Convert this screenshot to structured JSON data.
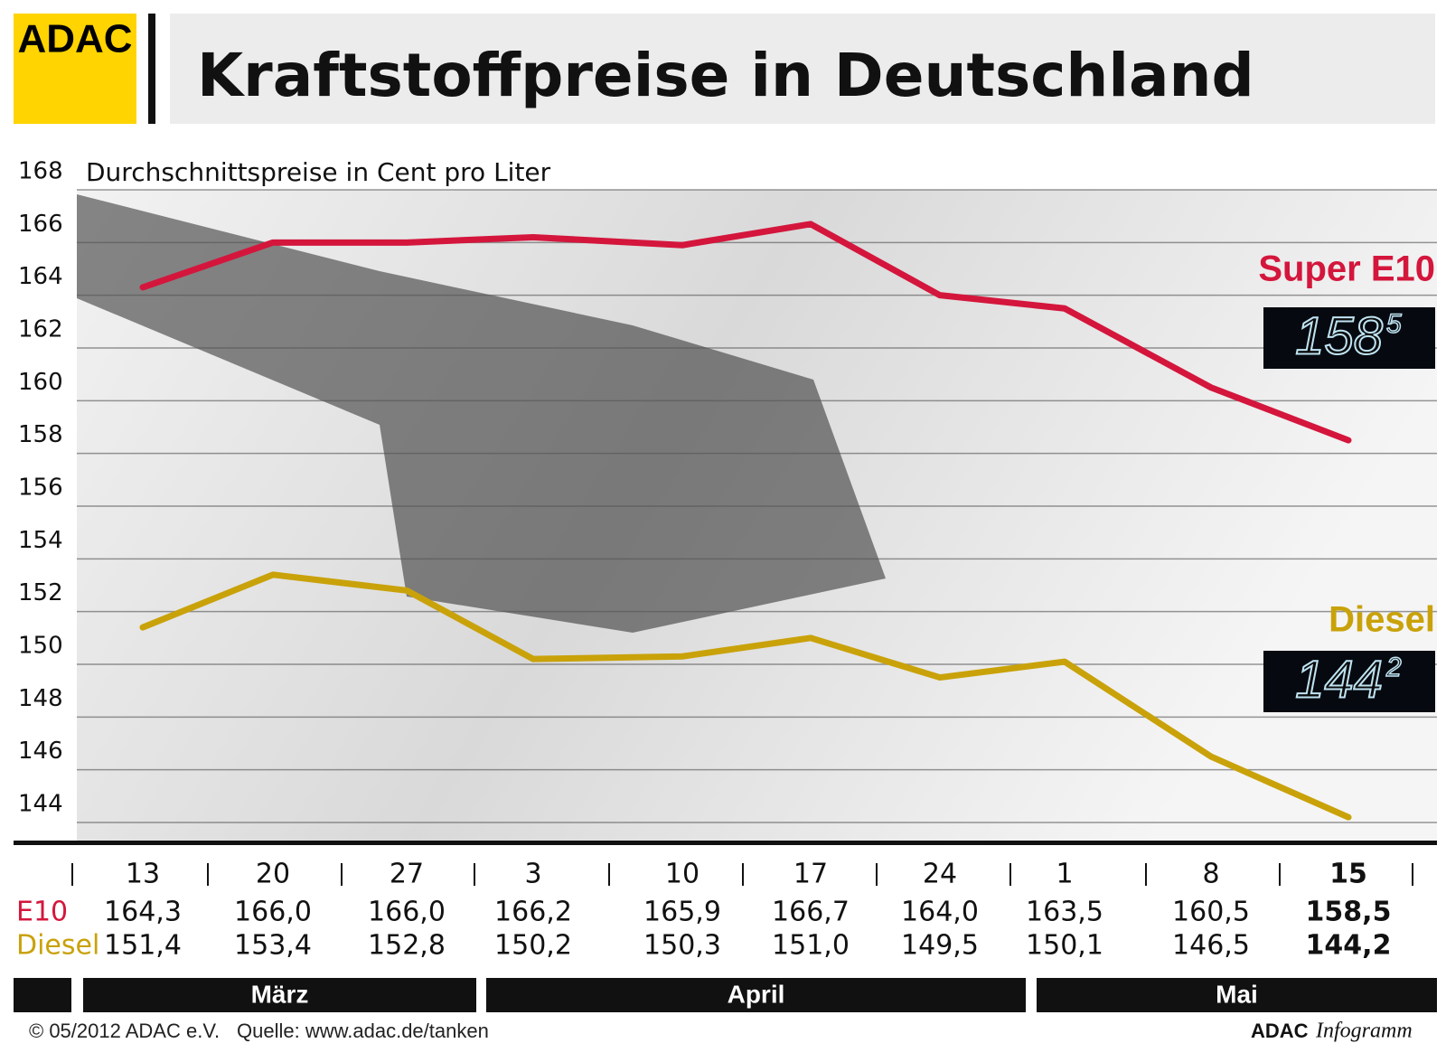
{
  "brand": "ADAC",
  "chart_data": {
    "type": "line",
    "title": "Kraftstoffpreise in Deutschland",
    "subtitle": "Durchschnittspreise in Cent pro Liter",
    "categories": [
      "13",
      "20",
      "27",
      "3",
      "10",
      "17",
      "24",
      "1",
      "8",
      "15"
    ],
    "months": [
      "März",
      "April",
      "Mai"
    ],
    "series": [
      {
        "name": "Super E10",
        "row_label": "E10",
        "color": "#d4163c",
        "values": [
          164.3,
          166.0,
          166.0,
          166.2,
          165.9,
          166.7,
          164.0,
          163.5,
          160.5,
          158.5
        ],
        "value_labels": [
          "164,3",
          "166,0",
          "166,0",
          "166,2",
          "165,9",
          "166,7",
          "164,0",
          "163,5",
          "160,5",
          "158,5"
        ],
        "display": [
          "158",
          "5"
        ]
      },
      {
        "name": "Diesel",
        "row_label": "Diesel",
        "color": "#c9a20a",
        "values": [
          151.4,
          153.4,
          152.8,
          150.2,
          150.3,
          151.0,
          149.5,
          150.1,
          146.5,
          144.2
        ],
        "value_labels": [
          "151,4",
          "153,4",
          "152,8",
          "150,2",
          "150,3",
          "151,0",
          "149,5",
          "150,1",
          "146,5",
          "144,2"
        ],
        "display": [
          "144",
          "2"
        ]
      }
    ],
    "ylim": [
      144,
      168
    ],
    "yticks": [
      168,
      166,
      164,
      162,
      160,
      158,
      156,
      154,
      152,
      150,
      148,
      146,
      144
    ],
    "grid": true
  },
  "footer": {
    "copyright": "© 05/2012 ADAC e.V.",
    "source": "Quelle: www.adac.de/tanken",
    "brand": "ADAC",
    "product": "Infogramm"
  }
}
